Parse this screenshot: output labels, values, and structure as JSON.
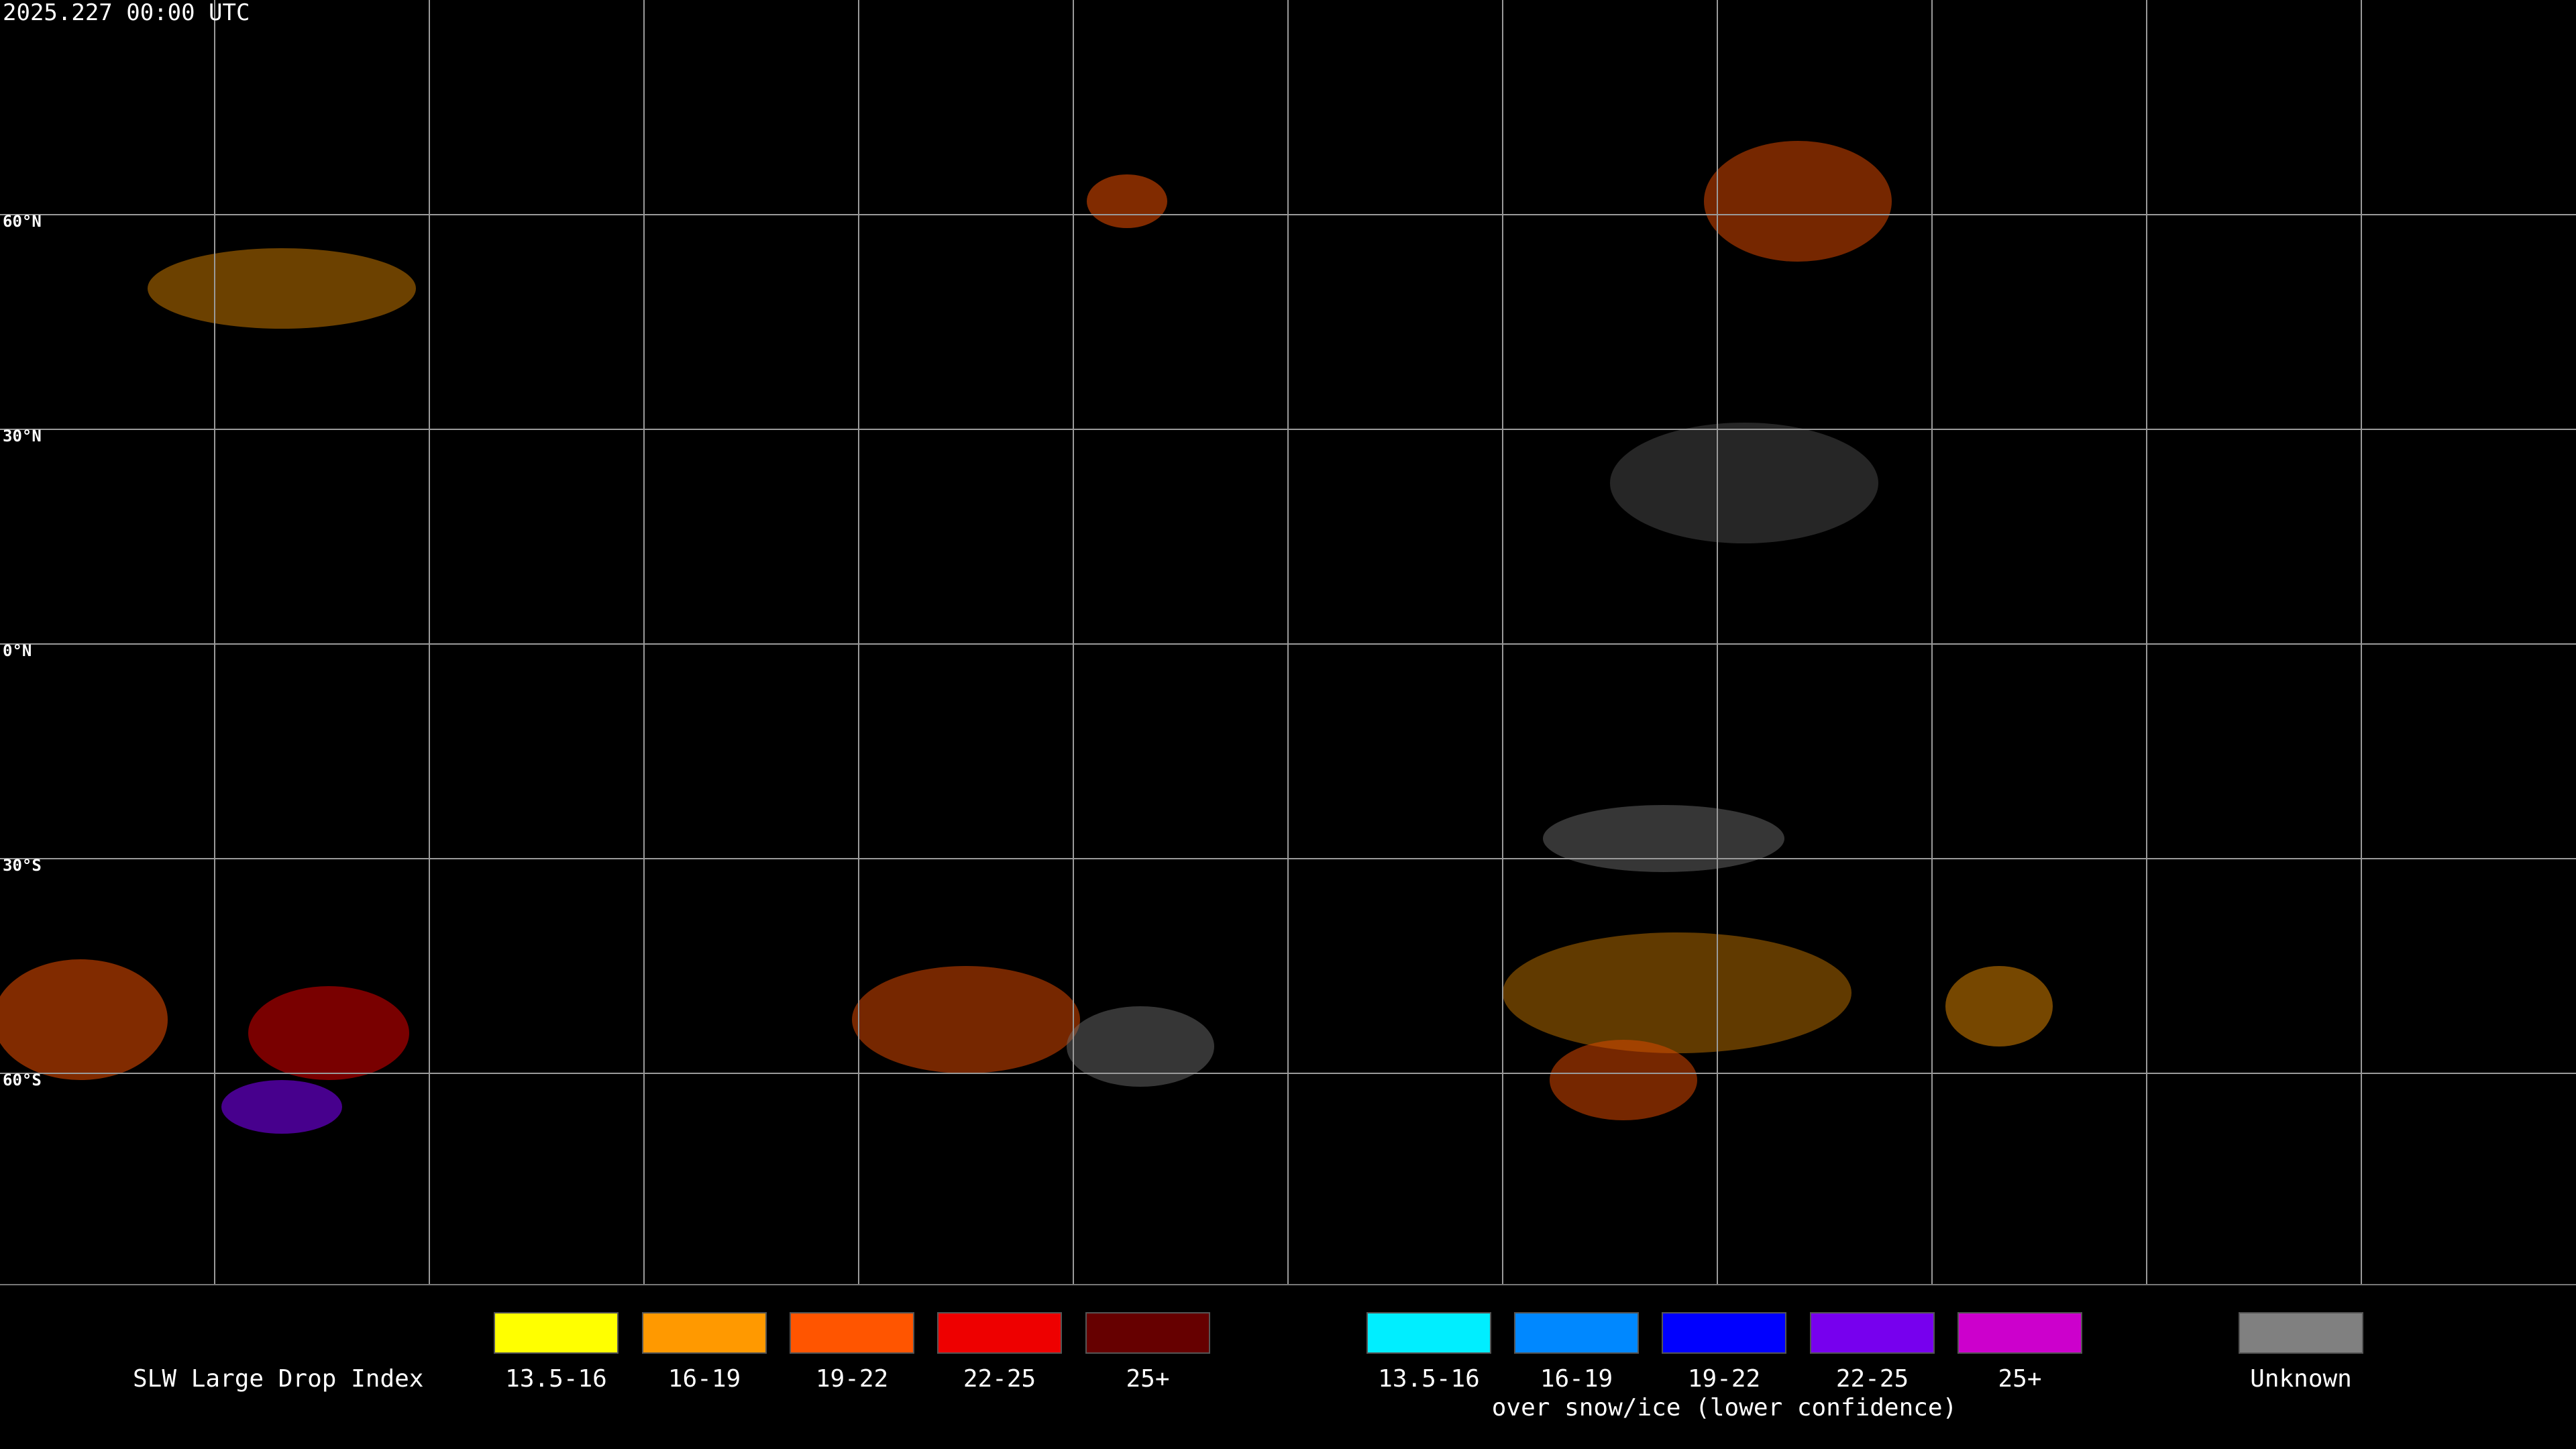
{
  "header": {
    "title": "2025.227 00:00 UTC"
  },
  "map": {
    "latitude_labels": [
      "60°N",
      "30°N",
      "0°N",
      "30°S",
      "60°S"
    ]
  },
  "legend": {
    "title": "SLW Large Drop Index",
    "groups": [
      {
        "items": [
          {
            "label": "13.5-16",
            "color": "#ffff00"
          },
          {
            "label": "16-19",
            "color": "#ff9900"
          },
          {
            "label": "19-22",
            "color": "#ff5500"
          },
          {
            "label": "22-25",
            "color": "#ee0000"
          },
          {
            "label": "25+",
            "color": "#660000"
          }
        ]
      },
      {
        "items": [
          {
            "label": "13.5-16",
            "color": "#00eeff"
          },
          {
            "label": "16-19",
            "color": "#0088ff"
          },
          {
            "label": "19-22",
            "color": "#0000ff"
          },
          {
            "label": "22-25",
            "color": "#7700ee"
          },
          {
            "label": "25+",
            "color": "#cc00cc"
          }
        ],
        "caption": "over snow/ice (lower confidence)"
      },
      {
        "items": [
          {
            "label": "Unknown",
            "color": "#808080"
          }
        ]
      }
    ]
  }
}
